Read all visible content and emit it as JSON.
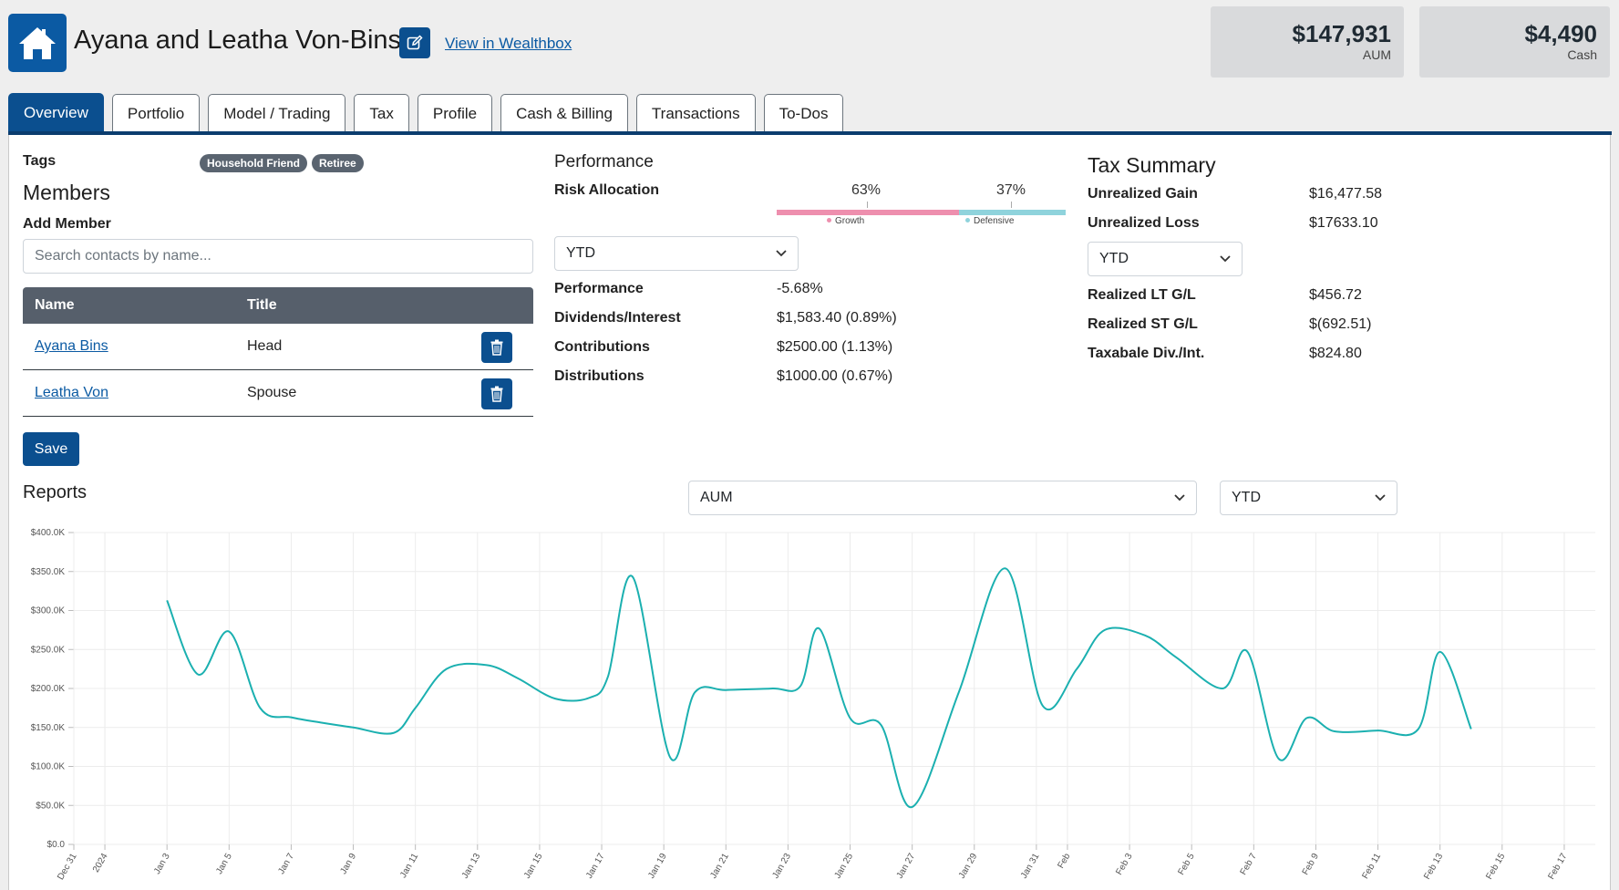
{
  "header": {
    "household_name": "Ayana and Leatha Von-Bins",
    "wealthbox_link": "View in Wealthbox",
    "aum": {
      "value": "$147,931",
      "label": "AUM"
    },
    "cash": {
      "value": "$4,490",
      "label": "Cash"
    }
  },
  "tabs": [
    {
      "label": "Overview"
    },
    {
      "label": "Portfolio"
    },
    {
      "label": "Model / Trading"
    },
    {
      "label": "Tax"
    },
    {
      "label": "Profile"
    },
    {
      "label": "Cash & Billing"
    },
    {
      "label": "Transactions"
    },
    {
      "label": "To-Dos"
    }
  ],
  "members": {
    "tags_label": "Tags",
    "tags": [
      "Household Friend",
      "Retiree"
    ],
    "heading": "Members",
    "add_label": "Add Member",
    "search_placeholder": "Search contacts by name...",
    "columns": [
      "Name",
      "Title"
    ],
    "rows": [
      {
        "name": "Ayana Bins",
        "title": "Head"
      },
      {
        "name": "Leatha Von",
        "title": "Spouse"
      }
    ],
    "save_label": "Save"
  },
  "performance": {
    "heading": "Performance",
    "risk_label": "Risk Allocation",
    "growth_pct": "63%",
    "defensive_pct": "37%",
    "growth_label": "Growth",
    "defensive_label": "Defensive",
    "growth_fraction": 0.63,
    "period": "YTD",
    "rows": [
      {
        "label": "Performance",
        "value": "-5.68%"
      },
      {
        "label": "Dividends/Interest",
        "value": "$1,583.40 (0.89%)"
      },
      {
        "label": "Contributions",
        "value": "$2500.00 (1.13%)"
      },
      {
        "label": "Distributions",
        "value": "$1000.00 (0.67%)"
      }
    ]
  },
  "tax": {
    "heading": "Tax Summary",
    "unrealized": [
      {
        "label": "Unrealized Gain",
        "value": "$16,477.58"
      },
      {
        "label": "Unrealized Loss",
        "value": "$17633.10"
      }
    ],
    "period": "YTD",
    "realized": [
      {
        "label": "Realized LT G/L",
        "value": "$456.72"
      },
      {
        "label": "Realized ST G/L",
        "value": "$(692.51)"
      },
      {
        "label": "Taxabale Div./Int.",
        "value": "$824.80"
      }
    ]
  },
  "reports": {
    "heading": "Reports",
    "metric": "AUM",
    "period": "YTD"
  },
  "colors": {
    "primary": "#0b4f8f",
    "line": "#1bb0b0",
    "growth": "#ee8fae",
    "defensive": "#8fd3dc"
  },
  "chart_data": {
    "type": "line",
    "series_name": "AUM",
    "ylim": [
      0,
      400000
    ],
    "y_ticks": [
      "$0.0",
      "$50.0K",
      "$100.0K",
      "$150.0K",
      "$200.0K",
      "$250.0K",
      "$300.0K",
      "$350.0K",
      "$400.0K"
    ],
    "x_ticks": [
      "Dec 31",
      "2024",
      "Jan 3",
      "Jan 5",
      "Jan 7",
      "Jan 9",
      "Jan 11",
      "Jan 13",
      "Jan 15",
      "Jan 17",
      "Jan 19",
      "Jan 21",
      "Jan 23",
      "Jan 25",
      "Jan 27",
      "Jan 29",
      "Jan 31",
      "Feb",
      "Feb 3",
      "Feb 5",
      "Feb 7",
      "Feb 9",
      "Feb 11",
      "Feb 13",
      "Feb 15",
      "Feb 17"
    ],
    "x_start_day": -1,
    "x_end_day": 48,
    "points": [
      {
        "x": 2.0,
        "y": 313000
      },
      {
        "x": 3.0,
        "y": 218000
      },
      {
        "x": 4.0,
        "y": 273000
      },
      {
        "x": 5.0,
        "y": 175000
      },
      {
        "x": 6.0,
        "y": 163000
      },
      {
        "x": 7.0,
        "y": 156000
      },
      {
        "x": 8.0,
        "y": 150000
      },
      {
        "x": 9.3,
        "y": 143000
      },
      {
        "x": 10.0,
        "y": 175000
      },
      {
        "x": 11.0,
        "y": 225000
      },
      {
        "x": 12.3,
        "y": 230000
      },
      {
        "x": 13.3,
        "y": 213000
      },
      {
        "x": 14.5,
        "y": 187000
      },
      {
        "x": 15.6,
        "y": 188000
      },
      {
        "x": 16.2,
        "y": 215000
      },
      {
        "x": 17.0,
        "y": 343000
      },
      {
        "x": 18.2,
        "y": 112000
      },
      {
        "x": 19.0,
        "y": 195000
      },
      {
        "x": 20.0,
        "y": 198000
      },
      {
        "x": 21.5,
        "y": 200000
      },
      {
        "x": 22.4,
        "y": 203000
      },
      {
        "x": 23.0,
        "y": 277000
      },
      {
        "x": 24.0,
        "y": 162000
      },
      {
        "x": 25.0,
        "y": 153000
      },
      {
        "x": 26.0,
        "y": 48000
      },
      {
        "x": 27.5,
        "y": 195000
      },
      {
        "x": 29.0,
        "y": 354000
      },
      {
        "x": 30.2,
        "y": 178000
      },
      {
        "x": 31.3,
        "y": 225000
      },
      {
        "x": 32.2,
        "y": 275000
      },
      {
        "x": 33.5,
        "y": 268000
      },
      {
        "x": 34.5,
        "y": 240000
      },
      {
        "x": 36.0,
        "y": 200000
      },
      {
        "x": 36.8,
        "y": 247000
      },
      {
        "x": 37.8,
        "y": 110000
      },
      {
        "x": 38.7,
        "y": 162000
      },
      {
        "x": 39.6,
        "y": 145000
      },
      {
        "x": 41.0,
        "y": 146000
      },
      {
        "x": 42.3,
        "y": 148000
      },
      {
        "x": 43.0,
        "y": 247000
      },
      {
        "x": 44.0,
        "y": 148000
      }
    ]
  }
}
